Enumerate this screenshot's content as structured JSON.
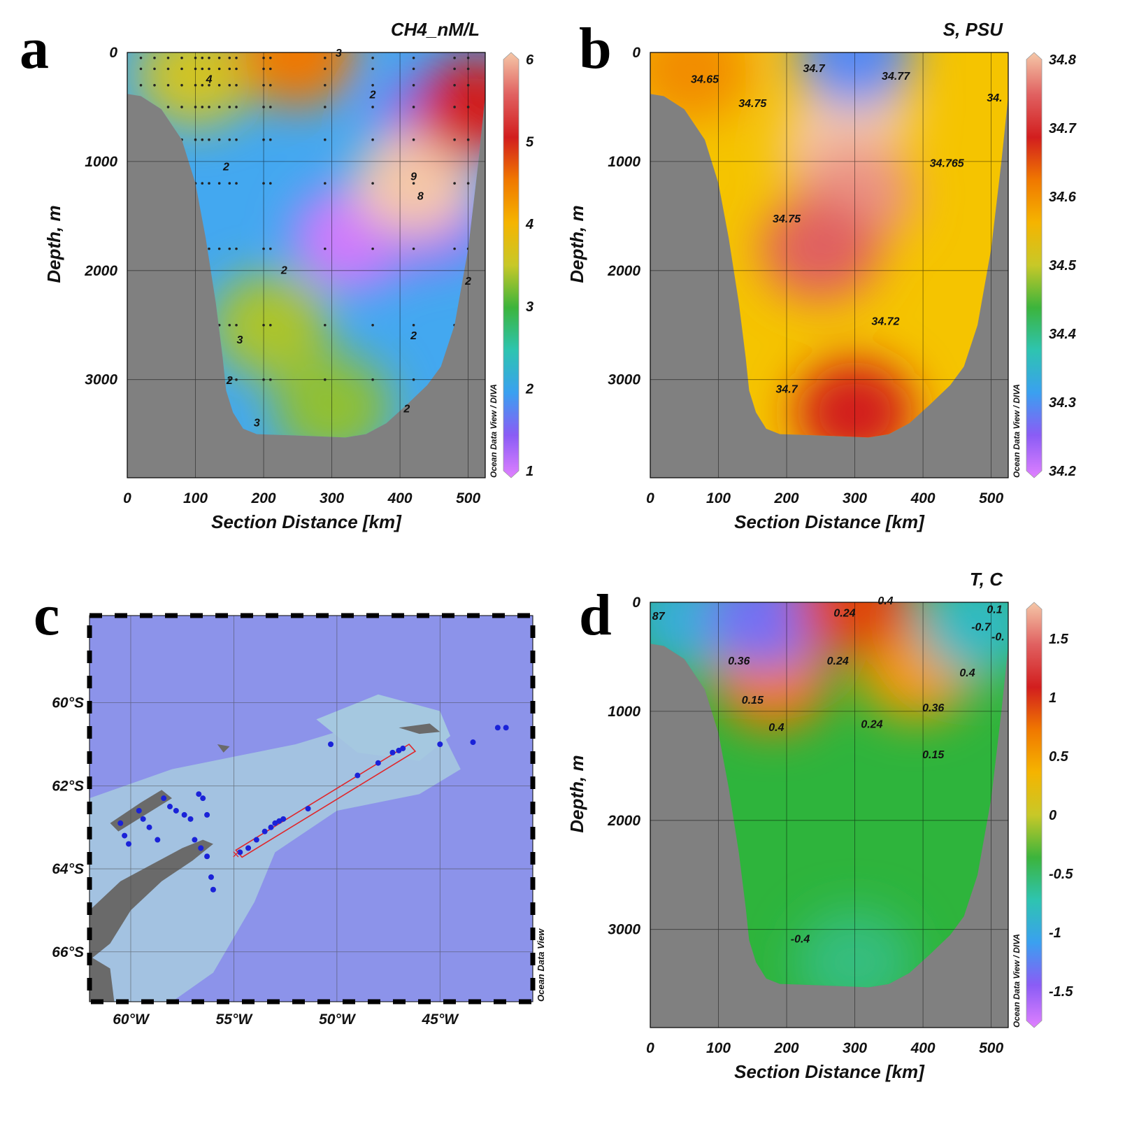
{
  "panel_letters": [
    "a",
    "b",
    "c",
    "d"
  ],
  "colorbar_credit": "Ocean Data View / DIVA",
  "map_credit": "Ocean Data View",
  "chart_data": [
    {
      "id": "a",
      "type": "heatmap",
      "title": "CH4_nM/L",
      "xlabel": "Section Distance [km]",
      "ylabel": "Depth, m",
      "xlim": [
        0,
        525
      ],
      "ylim": [
        3900,
        0
      ],
      "x_ticks": [
        "0",
        "100",
        "200",
        "300",
        "400",
        "500"
      ],
      "y_ticks": [
        "0",
        "1000",
        "2000",
        "3000"
      ],
      "colorbar": {
        "min": 1,
        "max": 6,
        "ticks": [
          "1",
          "2",
          "3",
          "4",
          "5",
          "6"
        ],
        "colors": [
          "#e080ff",
          "#8a5cf5",
          "#3aa0f0",
          "#2ec4b0",
          "#3cb43c",
          "#c8c828",
          "#f5b400",
          "#f07800",
          "#d21e1e",
          "#e06060",
          "#f5c8a8"
        ]
      },
      "background_color": "#43a8f0",
      "blobs": [
        {
          "x": 330,
          "depth": 1700,
          "value": 1.1
        },
        {
          "x": 440,
          "depth": 1500,
          "value": 1.3
        },
        {
          "x": 450,
          "depth": 700,
          "value": 1.4
        },
        {
          "x": 420,
          "depth": 1200,
          "value": 6
        },
        {
          "x": 210,
          "depth": 2500,
          "value": 3.4
        },
        {
          "x": 300,
          "depth": 3250,
          "value": 3.3
        },
        {
          "x": 100,
          "depth": 200,
          "value": 3.6
        },
        {
          "x": 510,
          "depth": 500,
          "value": 5
        },
        {
          "x": 250,
          "depth": 20,
          "value": 4.5
        }
      ],
      "contour_labels": [
        {
          "text": "4",
          "x": 120,
          "depth": 280
        },
        {
          "text": "2",
          "x": 360,
          "depth": 420
        },
        {
          "text": "2",
          "x": 145,
          "depth": 1080
        },
        {
          "text": "9",
          "x": 420,
          "depth": 1170
        },
        {
          "text": "8",
          "x": 430,
          "depth": 1350
        },
        {
          "text": "2",
          "x": 230,
          "depth": 2030
        },
        {
          "text": "3",
          "x": 165,
          "depth": 2670
        },
        {
          "text": "2",
          "x": 420,
          "depth": 2630
        },
        {
          "text": "2",
          "x": 150,
          "depth": 3040
        },
        {
          "text": "2",
          "x": 410,
          "depth": 3300
        },
        {
          "text": "3",
          "x": 190,
          "depth": 3430
        },
        {
          "text": "3",
          "x": 310,
          "depth": 40
        },
        {
          "text": "2",
          "x": 500,
          "depth": 2130
        }
      ],
      "stations_km": [
        20,
        40,
        60,
        80,
        100,
        110,
        120,
        135,
        150,
        160,
        200,
        210,
        290,
        360,
        420,
        480,
        500
      ],
      "sample_depths": [
        50,
        150,
        300,
        500,
        800,
        1200,
        1800,
        2500,
        3000
      ]
    },
    {
      "id": "b",
      "type": "heatmap",
      "title": "S, PSU",
      "xlabel": "Section Distance [km]",
      "ylabel": "Depth, m",
      "xlim": [
        0,
        525
      ],
      "ylim": [
        3900,
        0
      ],
      "x_ticks": [
        "0",
        "100",
        "200",
        "300",
        "400",
        "500"
      ],
      "y_ticks": [
        "0",
        "1000",
        "2000",
        "3000"
      ],
      "colorbar": {
        "min": 34.2,
        "max": 34.8,
        "ticks": [
          "34.2",
          "34.3",
          "34.4",
          "34.5",
          "34.6",
          "34.7",
          "34.8"
        ],
        "colors": [
          "#e080ff",
          "#8a5cf5",
          "#3aa0f0",
          "#2ec4b0",
          "#3cb43c",
          "#c8c828",
          "#f5b400",
          "#f07800",
          "#d21e1e",
          "#e06060",
          "#f5c8a8"
        ]
      },
      "background_color": "#f5c400",
      "blobs": [
        {
          "x": 280,
          "depth": 900,
          "value": 34.8
        },
        {
          "x": 300,
          "depth": 500,
          "value": 34.8
        },
        {
          "x": 300,
          "depth": 1300,
          "value": 34.77
        },
        {
          "x": 250,
          "depth": 1800,
          "value": 34.74
        },
        {
          "x": 300,
          "depth": 3300,
          "value": 34.68
        },
        {
          "x": 60,
          "depth": 150,
          "value": 34.6
        },
        {
          "x": 300,
          "depth": 10,
          "value": 34.3
        }
      ],
      "contour_labels": [
        {
          "text": "34.65",
          "x": 80,
          "depth": 280
        },
        {
          "text": "34.7",
          "x": 240,
          "depth": 180
        },
        {
          "text": "34.77",
          "x": 360,
          "depth": 250
        },
        {
          "text": "34.75",
          "x": 150,
          "depth": 500
        },
        {
          "text": "34.765",
          "x": 435,
          "depth": 1050
        },
        {
          "text": "34.75",
          "x": 200,
          "depth": 1560
        },
        {
          "text": "34.72",
          "x": 345,
          "depth": 2500
        },
        {
          "text": "34.7",
          "x": 200,
          "depth": 3120
        },
        {
          "text": "34.",
          "x": 505,
          "depth": 450
        }
      ]
    },
    {
      "id": "d",
      "type": "heatmap",
      "title": "T, C",
      "xlabel": "Section Distance [km]",
      "ylabel": "Depth, m",
      "xlim": [
        0,
        525
      ],
      "ylim": [
        3900,
        0
      ],
      "x_ticks": [
        "0",
        "100",
        "200",
        "300",
        "400",
        "500"
      ],
      "y_ticks": [
        "0",
        "1000",
        "2000",
        "3000"
      ],
      "colorbar": {
        "min": -1.75,
        "max": 1.75,
        "ticks": [
          "-1.5",
          "-1",
          "-0.5",
          "0",
          "0.5",
          "1",
          "1.5"
        ],
        "colors": [
          "#e080ff",
          "#8a5cf5",
          "#3aa0f0",
          "#2ec4b0",
          "#3cb43c",
          "#c8c828",
          "#f5b400",
          "#f07800",
          "#d21e1e",
          "#e06060",
          "#f5c8a8"
        ]
      },
      "background_color": "#2eb43c",
      "blobs": [
        {
          "x": 180,
          "depth": 700,
          "value": 0.7
        },
        {
          "x": 390,
          "depth": 600,
          "value": 0.5
        },
        {
          "x": 300,
          "depth": 3300,
          "value": -0.55
        },
        {
          "x": 50,
          "depth": 150,
          "value": -0.9
        },
        {
          "x": 170,
          "depth": 130,
          "value": -1.3
        },
        {
          "x": 300,
          "depth": 10,
          "value": 0.9
        },
        {
          "x": 480,
          "depth": 200,
          "value": -0.8
        }
      ],
      "contour_labels": [
        {
          "text": "0.24",
          "x": 285,
          "depth": 130
        },
        {
          "text": "0.24",
          "x": 275,
          "depth": 570
        },
        {
          "text": "0.36",
          "x": 130,
          "depth": 570
        },
        {
          "text": "0.4",
          "x": 465,
          "depth": 680
        },
        {
          "text": "0.15",
          "x": 150,
          "depth": 930
        },
        {
          "text": "0.36",
          "x": 415,
          "depth": 1000
        },
        {
          "text": "0.24",
          "x": 325,
          "depth": 1150
        },
        {
          "text": "0.4",
          "x": 185,
          "depth": 1180
        },
        {
          "text": "0.15",
          "x": 415,
          "depth": 1430
        },
        {
          "text": "-0.4",
          "x": 220,
          "depth": 3120
        },
        {
          "text": "87",
          "x": 12,
          "depth": 160
        },
        {
          "text": "-0.7",
          "x": 485,
          "depth": 260
        },
        {
          "text": "0.1",
          "x": 505,
          "depth": 100
        },
        {
          "text": "-0.",
          "x": 510,
          "depth": 350
        },
        {
          "text": "0.4",
          "x": 345,
          "depth": 20
        }
      ]
    }
  ],
  "map": {
    "id": "c",
    "type": "scatter",
    "lon_lim": [
      -62,
      -40.5
    ],
    "lat_lim": [
      -67.2,
      -57.9
    ],
    "lon_ticks": [
      {
        "value": -60,
        "label": "60°W"
      },
      {
        "value": -55,
        "label": "55°W"
      },
      {
        "value": -50,
        "label": "50°W"
      },
      {
        "value": -45,
        "label": "45°W"
      }
    ],
    "lat_ticks": [
      {
        "value": -60,
        "label": "60°S"
      },
      {
        "value": -62,
        "label": "62°S"
      },
      {
        "value": -64,
        "label": "64°S"
      },
      {
        "value": -66,
        "label": "66°S"
      }
    ],
    "stations": [
      {
        "lon": -60.5,
        "lat": -62.9
      },
      {
        "lon": -60.3,
        "lat": -63.2
      },
      {
        "lon": -60.1,
        "lat": -63.4
      },
      {
        "lon": -59.6,
        "lat": -62.6
      },
      {
        "lon": -59.4,
        "lat": -62.8
      },
      {
        "lon": -59.1,
        "lat": -63.0
      },
      {
        "lon": -58.7,
        "lat": -63.3
      },
      {
        "lon": -58.4,
        "lat": -62.3
      },
      {
        "lon": -58.1,
        "lat": -62.5
      },
      {
        "lon": -57.8,
        "lat": -62.6
      },
      {
        "lon": -57.4,
        "lat": -62.7
      },
      {
        "lon": -57.1,
        "lat": -62.8
      },
      {
        "lon": -56.7,
        "lat": -62.2
      },
      {
        "lon": -56.5,
        "lat": -62.3
      },
      {
        "lon": -56.3,
        "lat": -62.7
      },
      {
        "lon": -56.9,
        "lat": -63.3
      },
      {
        "lon": -56.6,
        "lat": -63.5
      },
      {
        "lon": -56.3,
        "lat": -63.7
      },
      {
        "lon": -56.1,
        "lat": -64.2
      },
      {
        "lon": -56.0,
        "lat": -64.5
      },
      {
        "lon": -54.7,
        "lat": -63.6
      },
      {
        "lon": -54.3,
        "lat": -63.5
      },
      {
        "lon": -53.9,
        "lat": -63.3
      },
      {
        "lon": -53.5,
        "lat": -63.1
      },
      {
        "lon": -53.2,
        "lat": -63.0
      },
      {
        "lon": -53.0,
        "lat": -62.9
      },
      {
        "lon": -52.8,
        "lat": -62.85
      },
      {
        "lon": -52.6,
        "lat": -62.8
      },
      {
        "lon": -51.4,
        "lat": -62.55
      },
      {
        "lon": -49.0,
        "lat": -61.75
      },
      {
        "lon": -48.0,
        "lat": -61.45
      },
      {
        "lon": -47.3,
        "lat": -61.2
      },
      {
        "lon": -47.0,
        "lat": -61.15
      },
      {
        "lon": -46.8,
        "lat": -61.1
      },
      {
        "lon": -50.3,
        "lat": -61.0
      },
      {
        "lon": -45.0,
        "lat": -61.0
      },
      {
        "lon": -43.4,
        "lat": -60.95
      },
      {
        "lon": -42.2,
        "lat": -60.6
      },
      {
        "lon": -41.8,
        "lat": -60.6
      }
    ],
    "section_box": [
      [
        -54.9,
        -63.55
      ],
      [
        -46.5,
        -61.0
      ],
      [
        -46.2,
        -61.17
      ],
      [
        -54.6,
        -63.72
      ]
    ],
    "section_start": {
      "lon": -54.9,
      "lat": -63.65
    },
    "colors": {
      "ocean": "#8c93ea",
      "shelf": "#a5c8e0",
      "land": "#6a6a6a",
      "ice": "#e8c0a8",
      "station": "#1a22d8",
      "box": "#e0262a"
    }
  }
}
